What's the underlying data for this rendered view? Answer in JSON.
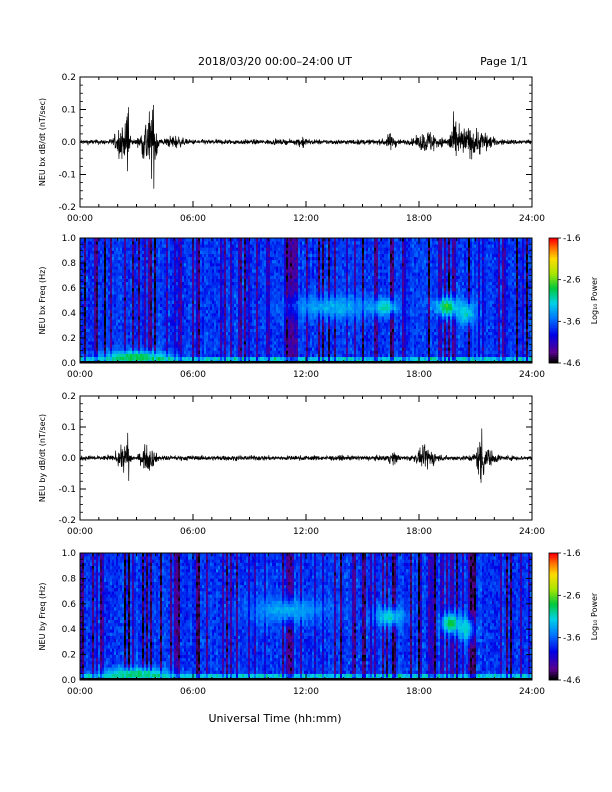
{
  "header": {
    "title": "2018/03/20  00:00–24:00 UT",
    "page": "Page 1/1"
  },
  "xlabel": "Universal Time (hh:mm)",
  "chart_data": [
    {
      "type": "line",
      "ylabel": "NEU bx dB/dt (nT/sec)",
      "x_ticks": [
        "00:00",
        "06:00",
        "12:00",
        "18:00",
        "24:00"
      ],
      "xlim": [
        0,
        24
      ],
      "ylim": [
        -0.2,
        0.2
      ],
      "y_ticks": [
        "0.2",
        "0.1",
        "0.0",
        "-0.1",
        "-0.2"
      ],
      "baseline_amplitude": 0.008,
      "bursts": [
        {
          "t": 2.2,
          "width": 0.45,
          "amp": 0.05
        },
        {
          "t": 2.55,
          "width": 0.12,
          "amp": 0.2
        },
        {
          "t": 3.6,
          "width": 0.45,
          "amp": 0.09
        },
        {
          "t": 3.95,
          "width": 0.25,
          "amp": 0.08
        },
        {
          "t": 5.0,
          "width": 0.6,
          "amp": 0.015
        },
        {
          "t": 11.8,
          "width": 0.3,
          "amp": 0.015
        },
        {
          "t": 16.5,
          "width": 0.4,
          "amp": 0.02
        },
        {
          "t": 18.5,
          "width": 0.8,
          "amp": 0.03
        },
        {
          "t": 19.8,
          "width": 0.3,
          "amp": 0.045
        },
        {
          "t": 20.4,
          "width": 0.8,
          "amp": 0.04
        },
        {
          "t": 21.3,
          "width": 0.8,
          "amp": 0.03
        }
      ]
    },
    {
      "type": "heatmap",
      "ylabel": "NEU bx Freq (Hz)",
      "x_ticks": [
        "00:00",
        "06:00",
        "12:00",
        "18:00",
        "24:00"
      ],
      "xlim": [
        0,
        24
      ],
      "ylim": [
        0,
        1
      ],
      "y_ticks": [
        "1.0",
        "0.8",
        "0.6",
        "0.4",
        "0.2",
        "0.0"
      ],
      "colorbar": {
        "label": "Log₁₀ Power",
        "range": [
          -4.6,
          -1.6
        ],
        "ticks": [
          "-1.6",
          "-2.6",
          "-3.6",
          "-4.6"
        ]
      },
      "features": [
        {
          "t": 3.0,
          "f": 0.05,
          "dt": 1.8,
          "df": 0.05,
          "level": -2.8
        },
        {
          "t": 13.5,
          "f": 0.45,
          "dt": 2.5,
          "df": 0.1,
          "level": -3.3
        },
        {
          "t": 16.2,
          "f": 0.45,
          "dt": 0.6,
          "df": 0.06,
          "level": -3.0
        },
        {
          "t": 19.5,
          "f": 0.45,
          "dt": 0.6,
          "df": 0.08,
          "level": -2.7
        },
        {
          "t": 20.5,
          "f": 0.4,
          "dt": 0.5,
          "df": 0.1,
          "level": -3.1
        }
      ]
    },
    {
      "type": "line",
      "ylabel": "NEU by dB/dt (nT/sec)",
      "x_ticks": [
        "00:00",
        "06:00",
        "12:00",
        "18:00",
        "24:00"
      ],
      "xlim": [
        0,
        24
      ],
      "ylim": [
        -0.2,
        0.2
      ],
      "y_ticks": [
        "0.2",
        "0.1",
        "0.0",
        "-0.1",
        "-0.2"
      ],
      "baseline_amplitude": 0.008,
      "bursts": [
        {
          "t": 2.3,
          "width": 0.4,
          "amp": 0.035
        },
        {
          "t": 2.55,
          "width": 0.1,
          "amp": 0.12
        },
        {
          "t": 3.6,
          "width": 0.5,
          "amp": 0.04
        },
        {
          "t": 16.6,
          "width": 0.4,
          "amp": 0.015
        },
        {
          "t": 18.4,
          "width": 0.7,
          "amp": 0.03
        },
        {
          "t": 21.3,
          "width": 0.25,
          "amp": 0.07
        },
        {
          "t": 21.5,
          "width": 0.8,
          "amp": 0.025
        }
      ]
    },
    {
      "type": "heatmap",
      "ylabel": "NEU by Freq (Hz)",
      "x_ticks": [
        "00:00",
        "06:00",
        "12:00",
        "18:00",
        "24:00"
      ],
      "xlim": [
        0,
        24
      ],
      "ylim": [
        0,
        1
      ],
      "y_ticks": [
        "1.0",
        "0.8",
        "0.6",
        "0.4",
        "0.2",
        "0.0"
      ],
      "colorbar": {
        "label": "Log₁₀ Power",
        "range": [
          -4.6,
          -1.6
        ],
        "ticks": [
          "-1.6",
          "-2.6",
          "-3.6",
          "-4.6"
        ]
      },
      "features": [
        {
          "t": 3.0,
          "f": 0.05,
          "dt": 1.8,
          "df": 0.05,
          "level": -2.9
        },
        {
          "t": 11.0,
          "f": 0.55,
          "dt": 2.0,
          "df": 0.1,
          "level": -3.3
        },
        {
          "t": 16.4,
          "f": 0.5,
          "dt": 0.8,
          "df": 0.08,
          "level": -3.1
        },
        {
          "t": 19.7,
          "f": 0.45,
          "dt": 0.5,
          "df": 0.08,
          "level": -2.7
        },
        {
          "t": 20.5,
          "f": 0.4,
          "dt": 0.5,
          "df": 0.1,
          "level": -3.1
        }
      ]
    }
  ]
}
